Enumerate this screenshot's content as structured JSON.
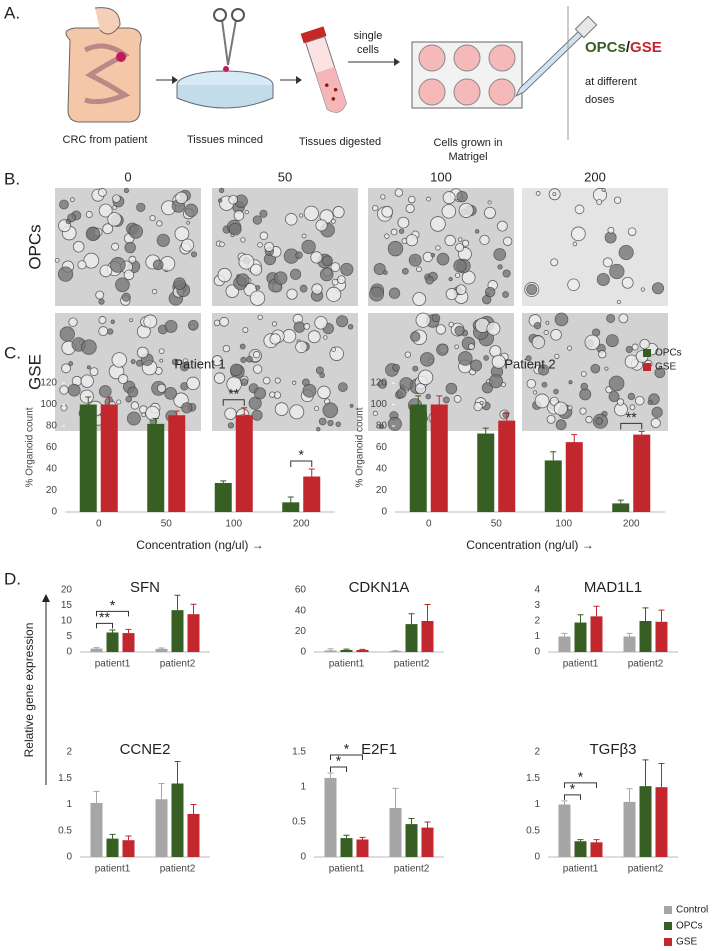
{
  "panel_labels": [
    "A.",
    "B.",
    "C.",
    "D."
  ],
  "diagram": {
    "steps": [
      "CRC from patient",
      "Tissues minced",
      "Tissues digested",
      "Cells grown in",
      "Matrigel"
    ],
    "arrow_label": [
      "single",
      "cells"
    ],
    "treatment": [
      "OPCs",
      "/",
      "GSE"
    ],
    "treatment_note": [
      "at different",
      "doses"
    ]
  },
  "micrographs": {
    "columns": [
      "0",
      "50",
      "100",
      "200"
    ],
    "rows": [
      "OPCs",
      "GSE"
    ]
  },
  "panel_d": {
    "ylabel": "Relative gene expression"
  },
  "chart_data": [
    {
      "type": "bar",
      "title": "Patient 1",
      "ylabel": "% Organoid count",
      "xlabel": "Concentration (ng/ul) →",
      "categories": [
        "0",
        "50",
        "100",
        "200"
      ],
      "ylim": [
        0,
        120
      ],
      "yticks": [
        0,
        20,
        40,
        60,
        80,
        100,
        120
      ],
      "series": [
        {
          "name": "OPCs",
          "color": "#375e23",
          "values": [
            100,
            82,
            27,
            9
          ],
          "errors": [
            7,
            5,
            2,
            5
          ]
        },
        {
          "name": "GSE",
          "color": "#c1272d",
          "values": [
            100,
            90,
            90,
            33
          ],
          "errors": [
            7,
            4,
            7,
            7
          ]
        }
      ],
      "annotations": [
        {
          "text": "**",
          "category": "100"
        },
        {
          "text": "*",
          "category": "200"
        }
      ]
    },
    {
      "type": "bar",
      "title": "Patient 2",
      "ylabel": "% Organoid count",
      "xlabel": "Concentration (ng/ul) →",
      "categories": [
        "0",
        "50",
        "100",
        "200"
      ],
      "ylim": [
        0,
        120
      ],
      "yticks": [
        0,
        20,
        40,
        60,
        80,
        100,
        120
      ],
      "legend": "upper right",
      "series": [
        {
          "name": "OPCs",
          "color": "#375e23",
          "values": [
            100,
            73,
            48,
            8
          ],
          "errors": [
            8,
            5,
            8,
            3
          ]
        },
        {
          "name": "GSE",
          "color": "#c1272d",
          "values": [
            100,
            85,
            65,
            72
          ],
          "errors": [
            8,
            7,
            7,
            3
          ]
        }
      ],
      "annotations": [
        {
          "text": "**",
          "category": "200"
        }
      ]
    },
    {
      "type": "bar",
      "title": "SFN",
      "categories": [
        "patient1",
        "patient2"
      ],
      "ylim": [
        0,
        20
      ],
      "yticks": [
        0,
        5,
        10,
        15,
        20
      ],
      "series": [
        {
          "name": "Control",
          "color": "#a6a6a6",
          "values": [
            1.1,
            1.0
          ],
          "errors": [
            0.3,
            0.3
          ]
        },
        {
          "name": "OPCs",
          "color": "#375e23",
          "values": [
            6.3,
            13.5
          ],
          "errors": [
            0.8,
            4.8
          ]
        },
        {
          "name": "GSE",
          "color": "#c1272d",
          "values": [
            6.1,
            12.2
          ],
          "errors": [
            1.2,
            3.2
          ]
        }
      ],
      "annotations": [
        {
          "text": "**",
          "category": "patient1",
          "from": "Control",
          "to": "OPCs"
        },
        {
          "text": "*",
          "category": "patient1",
          "from": "Control",
          "to": "GSE"
        }
      ]
    },
    {
      "type": "bar",
      "title": "CDKN1A",
      "categories": [
        "patient1",
        "patient2"
      ],
      "ylim": [
        0,
        60
      ],
      "yticks": [
        0,
        20,
        40,
        60
      ],
      "series": [
        {
          "name": "Control",
          "color": "#a6a6a6",
          "values": [
            1.5,
            1.0
          ],
          "errors": [
            1.5,
            0.3
          ]
        },
        {
          "name": "OPCs",
          "color": "#375e23",
          "values": [
            2,
            27
          ],
          "errors": [
            0.8,
            10
          ]
        },
        {
          "name": "GSE",
          "color": "#c1272d",
          "values": [
            2,
            30
          ],
          "errors": [
            0.5,
            16
          ]
        }
      ]
    },
    {
      "type": "bar",
      "title": "MAD1L1",
      "categories": [
        "patient1",
        "patient2"
      ],
      "ylim": [
        0,
        4
      ],
      "yticks": [
        0,
        1,
        2,
        3,
        4
      ],
      "series": [
        {
          "name": "Control",
          "color": "#a6a6a6",
          "values": [
            1.0,
            1.0
          ],
          "errors": [
            0.2,
            0.2
          ]
        },
        {
          "name": "OPCs",
          "color": "#375e23",
          "values": [
            1.9,
            2.0
          ],
          "errors": [
            0.5,
            0.85
          ]
        },
        {
          "name": "GSE",
          "color": "#c1272d",
          "values": [
            2.3,
            1.95
          ],
          "errors": [
            0.65,
            0.75
          ]
        }
      ]
    },
    {
      "type": "bar",
      "title": "CCNE2",
      "categories": [
        "patient1",
        "patient2"
      ],
      "ylim": [
        0,
        2
      ],
      "yticks": [
        0,
        0.5,
        1,
        1.5,
        2
      ],
      "series": [
        {
          "name": "Control",
          "color": "#a6a6a6",
          "values": [
            1.03,
            1.1
          ],
          "errors": [
            0.22,
            0.3
          ]
        },
        {
          "name": "OPCs",
          "color": "#375e23",
          "values": [
            0.35,
            1.4
          ],
          "errors": [
            0.08,
            0.42
          ]
        },
        {
          "name": "GSE",
          "color": "#c1272d",
          "values": [
            0.32,
            0.82
          ],
          "errors": [
            0.08,
            0.18
          ]
        }
      ]
    },
    {
      "type": "bar",
      "title": "E2F1",
      "categories": [
        "patient1",
        "patient2"
      ],
      "ylim": [
        0,
        1.5
      ],
      "yticks": [
        0,
        0.5,
        1,
        1.5
      ],
      "series": [
        {
          "name": "Control",
          "color": "#a6a6a6",
          "values": [
            1.13,
            0.7
          ],
          "errors": [
            0.07,
            0.28
          ]
        },
        {
          "name": "OPCs",
          "color": "#375e23",
          "values": [
            0.27,
            0.47
          ],
          "errors": [
            0.04,
            0.08
          ]
        },
        {
          "name": "GSE",
          "color": "#c1272d",
          "values": [
            0.25,
            0.42
          ],
          "errors": [
            0.03,
            0.08
          ]
        }
      ],
      "annotations": [
        {
          "text": "*",
          "category": "patient1",
          "from": "Control",
          "to": "OPCs"
        },
        {
          "text": "*",
          "category": "patient1",
          "from": "Control",
          "to": "GSE"
        }
      ]
    },
    {
      "type": "bar",
      "title": "TGFβ3",
      "categories": [
        "patient1",
        "patient2"
      ],
      "ylim": [
        0,
        2
      ],
      "yticks": [
        0,
        0.5,
        1,
        1.5,
        2
      ],
      "legend": "lower right",
      "series": [
        {
          "name": "Control",
          "color": "#a6a6a6",
          "values": [
            1.0,
            1.05
          ],
          "errors": [
            0.07,
            0.25
          ]
        },
        {
          "name": "OPCs",
          "color": "#375e23",
          "values": [
            0.3,
            1.35
          ],
          "errors": [
            0.03,
            0.5
          ]
        },
        {
          "name": "GSE",
          "color": "#c1272d",
          "values": [
            0.28,
            1.33
          ],
          "errors": [
            0.05,
            0.45
          ]
        }
      ],
      "annotations": [
        {
          "text": "*",
          "category": "patient1",
          "from": "Control",
          "to": "OPCs"
        },
        {
          "text": "*",
          "category": "patient1",
          "from": "Control",
          "to": "GSE"
        }
      ]
    }
  ]
}
